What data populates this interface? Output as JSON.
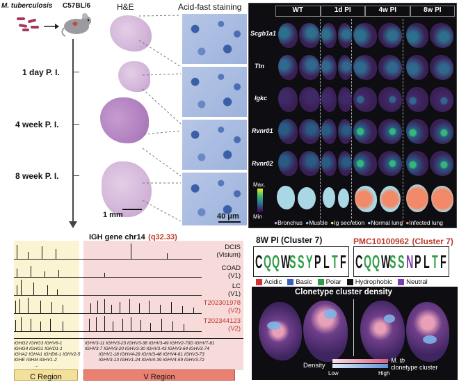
{
  "panel_a": {
    "organism": "M. tuberculosis",
    "strain": "C57BL/6",
    "he_title": "H&E",
    "afs_title": "Acid-fast staining",
    "timepoints": [
      "1 day P. I.",
      "4 week P. I.",
      "8 week P. I."
    ],
    "scale_he": "1 mm",
    "scale_afs": "40 μm"
  },
  "panel_b": {
    "columns": [
      "WT",
      "1d PI",
      "4w PI",
      "8w PI"
    ],
    "genes": [
      "Scgb1a1",
      "Ttn",
      "Igkc",
      "Rvnr01",
      "Rvnr02"
    ],
    "colorbar_max": "Max",
    "colorbar_min": "Min",
    "legend": [
      {
        "label": "Bronchus",
        "color": "#b99bd6"
      },
      {
        "label": "Muscle",
        "color": "#8fb8e8"
      },
      {
        "label": "Ig secretion",
        "color": "#f2e26a"
      },
      {
        "label": "Normal lung",
        "color": "#a9d8e4"
      },
      {
        "label": "Infected lung",
        "color": "#f28a6a"
      }
    ]
  },
  "panel_c": {
    "title": "IGH gene chr14",
    "locus": "(q32.33)",
    "tracks": [
      {
        "name": "DCIS",
        "platform": "(Visium)",
        "color": "#111111"
      },
      {
        "name": "COAD",
        "platform": "(V1)",
        "color": "#111111"
      },
      {
        "name": "LC",
        "platform": "(V1)",
        "color": "#111111"
      },
      {
        "name": "T202301978",
        "platform": "(V2)",
        "color": "#c0392b"
      },
      {
        "name": "T202344123",
        "platform": "(V2)",
        "color": "#c0392b"
      }
    ],
    "c_genes_row1": "IGHG2  IGHG3  IGHV6-1",
    "c_genes_row2": "IGHG4  IGHG1  IGHD1-1",
    "c_genes_row3": "IGHA2  IGHA1  IGHD6-1  IGHV2-5",
    "c_genes_row4": "IGHE        IGHM  IGHV1-2",
    "v_genes_row1": "IGHV3-11  IGHV3-23  IGHV3-38  IGHV3-49  IGHV2-70D  IGHV7-81",
    "v_genes_row2": "IGHV3-7  IGHV3-20  IGHV3-30  IGHV3-43  IGHV3-64  IGHV3-74",
    "v_genes_row3": "IGHV1-18  IGHV4-28  IGHV3-48  IGHV4-61  IGHV3-73",
    "v_genes_row4": "IGHV3-13  IGHV1-24  IGHV4-39  IGHV4-59  IGHV3-72",
    "ellipsis": "...",
    "c_region": "C Region",
    "v_region": "V Region"
  },
  "panel_d": {
    "logo1_title": "8W PI (Cluster 7)",
    "logo2_title_a": "PMC10100962",
    "logo2_title_b": "(Cluster 7)",
    "logo1_seq": "CQQWSSYPLTF",
    "logo2_seq": "CQQWSSNPLTF",
    "aa_legend": [
      {
        "label": "Acidic",
        "color": "#d6303a"
      },
      {
        "label": "Basic",
        "color": "#3a5fc0"
      },
      {
        "label": "Polar",
        "color": "#2e9e45"
      },
      {
        "label": "Hydrophobic",
        "color": "#111111"
      },
      {
        "label": "Neutral",
        "color": "#7a3fb0"
      }
    ],
    "density_title": "Clonetype cluster  density",
    "density_label": "Density",
    "low": "Low",
    "high": "High",
    "mtb": "M. tb",
    "clonetype": "clonetype cluster"
  }
}
